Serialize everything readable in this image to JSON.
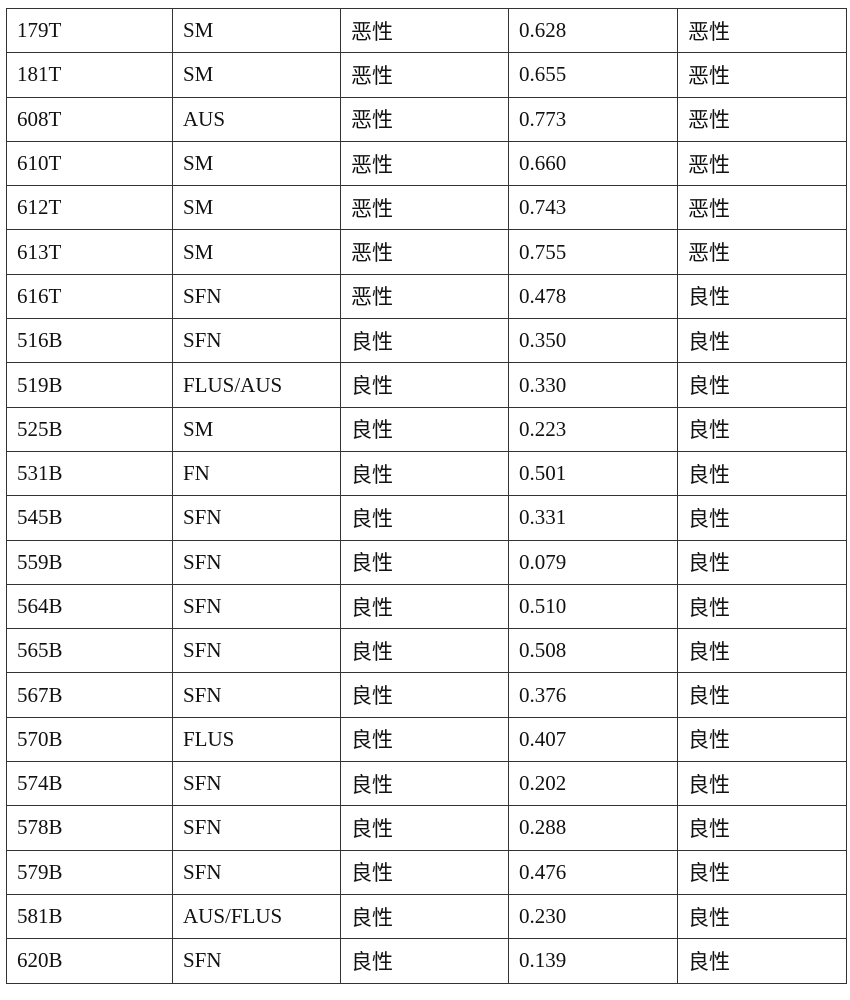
{
  "table": {
    "rows": [
      [
        "179T",
        "SM",
        "恶性",
        "0.628",
        "恶性"
      ],
      [
        "181T",
        "SM",
        "恶性",
        "0.655",
        "恶性"
      ],
      [
        "608T",
        "AUS",
        "恶性",
        "0.773",
        "恶性"
      ],
      [
        "610T",
        "SM",
        "恶性",
        "0.660",
        "恶性"
      ],
      [
        "612T",
        "SM",
        "恶性",
        "0.743",
        "恶性"
      ],
      [
        "613T",
        "SM",
        "恶性",
        "0.755",
        "恶性"
      ],
      [
        "616T",
        "SFN",
        "恶性",
        "0.478",
        "良性"
      ],
      [
        "516B",
        "SFN",
        "良性",
        "0.350",
        "良性"
      ],
      [
        "519B",
        "FLUS/AUS",
        "良性",
        "0.330",
        "良性"
      ],
      [
        "525B",
        "SM",
        "良性",
        "0.223",
        "良性"
      ],
      [
        "531B",
        "FN",
        "良性",
        "0.501",
        "良性"
      ],
      [
        "545B",
        "SFN",
        "良性",
        "0.331",
        "良性"
      ],
      [
        "559B",
        "SFN",
        "良性",
        "0.079",
        "良性"
      ],
      [
        "564B",
        "SFN",
        "良性",
        "0.510",
        "良性"
      ],
      [
        "565B",
        "SFN",
        "良性",
        "0.508",
        "良性"
      ],
      [
        "567B",
        "SFN",
        "良性",
        "0.376",
        "良性"
      ],
      [
        "570B",
        "FLUS",
        "良性",
        "0.407",
        "良性"
      ],
      [
        "574B",
        "SFN",
        "良性",
        "0.202",
        "良性"
      ],
      [
        "578B",
        "SFN",
        "良性",
        "0.288",
        "良性"
      ],
      [
        "579B",
        "SFN",
        "良性",
        "0.476",
        "良性"
      ],
      [
        "581B",
        "AUS/FLUS",
        "良性",
        "0.230",
        "良性"
      ],
      [
        "620B",
        "SFN",
        "良性",
        "0.139",
        "良性"
      ]
    ]
  }
}
